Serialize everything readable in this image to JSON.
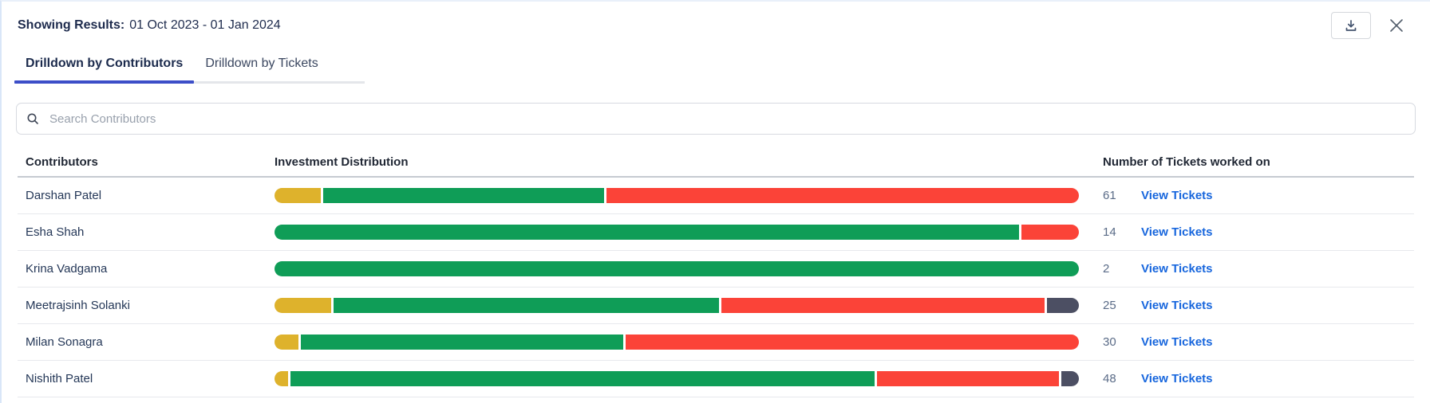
{
  "header": {
    "label": "Showing Results:",
    "date_range": "01 Oct 2023 - 01 Jan 2024"
  },
  "tabs": [
    {
      "label": "Drilldown by Contributors",
      "active": true
    },
    {
      "label": "Drilldown by Tickets",
      "active": false
    }
  ],
  "search": {
    "placeholder": "Search Contributors"
  },
  "table": {
    "columns": {
      "contributors": "Contributors",
      "distribution": "Investment Distribution",
      "tickets": "Number of Tickets worked on"
    },
    "link_label": "View Tickets",
    "rows": [
      {
        "name": "Darshan Patel",
        "tickets": "61",
        "segments": [
          {
            "color": "gold",
            "value": 58
          },
          {
            "color": "green",
            "value": 353
          },
          {
            "color": "red",
            "value": 593
          }
        ]
      },
      {
        "name": "Esha Shah",
        "tickets": "14",
        "segments": [
          {
            "color": "green",
            "value": 934
          },
          {
            "color": "red",
            "value": 72
          }
        ]
      },
      {
        "name": "Krina Vadgama",
        "tickets": "2",
        "segments": [
          {
            "color": "green",
            "value": 1009
          }
        ]
      },
      {
        "name": "Meetrajsinh Solanki",
        "tickets": "25",
        "segments": [
          {
            "color": "gold",
            "value": 71
          },
          {
            "color": "green",
            "value": 481
          },
          {
            "color": "red",
            "value": 404
          },
          {
            "color": "slate",
            "value": 40
          }
        ]
      },
      {
        "name": "Milan Sonagra",
        "tickets": "30",
        "segments": [
          {
            "color": "gold",
            "value": 30
          },
          {
            "color": "green",
            "value": 403
          },
          {
            "color": "red",
            "value": 567
          }
        ]
      },
      {
        "name": "Nishith Patel",
        "tickets": "48",
        "segments": [
          {
            "color": "gold",
            "value": 17
          },
          {
            "color": "green",
            "value": 729
          },
          {
            "color": "red",
            "value": 227
          },
          {
            "color": "slate",
            "value": 22
          }
        ]
      }
    ]
  },
  "colors": {
    "gold": "#DEB22C",
    "green": "#0F9D57",
    "red": "#FB4338",
    "slate": "#4C4F63",
    "tab_active_underline": "#3C4EC8",
    "link_blue": "#1766DD"
  }
}
